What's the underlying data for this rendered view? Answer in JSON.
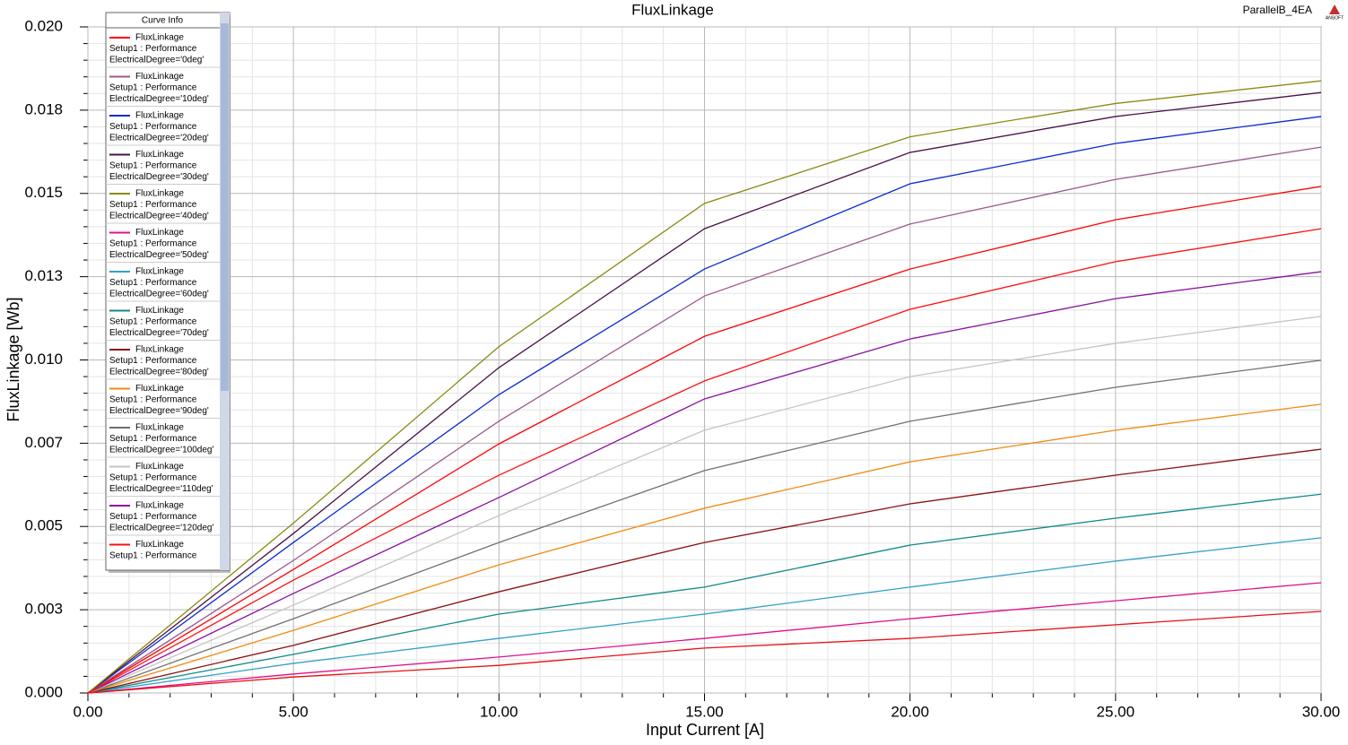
{
  "chart_data": {
    "type": "line",
    "title": "FluxLinkage",
    "brand": "ParallelB_4EA",
    "logo": "ANSOFT",
    "legend_title": "Curve Info",
    "x_label": "Input Current [A]",
    "y_label": "FluxLinkage [Wb]",
    "xlim": [
      0,
      30
    ],
    "ylim": [
      0,
      0.02
    ],
    "xticks": [
      {
        "value": 0,
        "label": "0.00"
      },
      {
        "value": 5,
        "label": "5.00"
      },
      {
        "value": 10,
        "label": "10.00"
      },
      {
        "value": 15,
        "label": "15.00"
      },
      {
        "value": 20,
        "label": "20.00"
      },
      {
        "value": 25,
        "label": "25.00"
      },
      {
        "value": 30,
        "label": "30.00"
      }
    ],
    "yticks": [
      {
        "value": 0,
        "label": "0.000"
      },
      {
        "value": 0.0025,
        "label": "0.003"
      },
      {
        "value": 0.005,
        "label": "0.005"
      },
      {
        "value": 0.0075,
        "label": "0.007"
      },
      {
        "value": 0.01,
        "label": "0.010"
      },
      {
        "value": 0.0125,
        "label": "0.013"
      },
      {
        "value": 0.015,
        "label": "0.015"
      },
      {
        "value": 0.0175,
        "label": "0.018"
      },
      {
        "value": 0.02,
        "label": "0.020"
      }
    ],
    "grid": true,
    "x": [
      0,
      5,
      10,
      15,
      20,
      25,
      30
    ],
    "series": [
      {
        "name": "FluxLinkage",
        "solution": "Setup1 : Performance",
        "variation": "ElectricalDegree='0deg'",
        "color": "#ff0000",
        "values": [
          0,
          0.00371,
          0.00748,
          0.01071,
          0.01273,
          0.01421,
          0.01521
        ]
      },
      {
        "name": "FluxLinkage",
        "solution": "Setup1 : Performance",
        "variation": "ElectricalDegree='10deg'",
        "color": "#9a5a8e",
        "values": [
          0,
          0.00398,
          0.00816,
          0.01192,
          0.01408,
          0.01542,
          0.01639
        ]
      },
      {
        "name": "FluxLinkage",
        "solution": "Setup1 : Performance",
        "variation": "ElectricalDegree='20deg'",
        "color": "#0a2ad0",
        "values": [
          0,
          0.00452,
          0.00896,
          0.01273,
          0.01529,
          0.0165,
          0.01731
        ]
      },
      {
        "name": "FluxLinkage",
        "solution": "Setup1 : Performance",
        "variation": "ElectricalDegree='30deg'",
        "color": "#4a1048",
        "values": [
          0,
          0.00479,
          0.00977,
          0.01394,
          0.01623,
          0.01731,
          0.01803
        ]
      },
      {
        "name": "FluxLinkage",
        "solution": "Setup1 : Performance",
        "variation": "ElectricalDegree='40deg'",
        "color": "#8a8a10",
        "values": [
          0,
          0.0051,
          0.0104,
          0.0147,
          0.0167,
          0.0177,
          0.01838
        ]
      },
      {
        "name": "FluxLinkage",
        "solution": "Setup1 : Performance",
        "variation": "ElectricalDegree='50deg'",
        "color": "#e0108a",
        "values": [
          0,
          0.00057,
          0.00108,
          0.00164,
          0.00223,
          0.00277,
          0.00331
        ]
      },
      {
        "name": "FluxLinkage",
        "solution": "Setup1 : Performance",
        "variation": "ElectricalDegree='60deg'",
        "color": "#30a0c8",
        "values": [
          0,
          0.00089,
          0.00164,
          0.00237,
          0.00318,
          0.00396,
          0.00466
        ]
      },
      {
        "name": "FluxLinkage",
        "solution": "Setup1 : Performance",
        "variation": "ElectricalDegree='70deg'",
        "color": "#108a8a",
        "values": [
          0,
          0.00116,
          0.00237,
          0.00318,
          0.00444,
          0.00525,
          0.00597
        ]
      },
      {
        "name": "FluxLinkage",
        "solution": "Setup1 : Performance",
        "variation": "ElectricalDegree='80deg'",
        "color": "#8a1010",
        "values": [
          0,
          0.00143,
          0.00304,
          0.00452,
          0.00568,
          0.00654,
          0.00732
        ]
      },
      {
        "name": "FluxLinkage",
        "solution": "Setup1 : Performance",
        "variation": "ElectricalDegree='90deg'",
        "color": "#f08a10",
        "values": [
          0,
          0.00188,
          0.00385,
          0.00555,
          0.00694,
          0.00789,
          0.00867
        ]
      },
      {
        "name": "FluxLinkage",
        "solution": "Setup1 : Performance",
        "variation": "ElectricalDegree='100deg'",
        "color": "#707070",
        "values": [
          0,
          0.00223,
          0.00452,
          0.00668,
          0.00816,
          0.00918,
          0.00999
        ]
      },
      {
        "name": "FluxLinkage",
        "solution": "Setup1 : Performance",
        "variation": "ElectricalDegree='110deg'",
        "color": "#c4c4c4",
        "values": [
          0,
          0.00264,
          0.00533,
          0.00789,
          0.0095,
          0.0105,
          0.01131
        ]
      },
      {
        "name": "FluxLinkage",
        "solution": "Setup1 : Performance",
        "variation": "ElectricalDegree='120deg'",
        "color": "#8a10a0",
        "values": [
          0,
          0.00299,
          0.00587,
          0.00883,
          0.01063,
          0.01184,
          0.01265
        ]
      },
      {
        "name": "FluxLinkage",
        "solution": "Setup1 : Performance",
        "color": "#ff1010",
        "values": [
          0,
          0.00339,
          0.00654,
          0.00937,
          0.01152,
          0.01295,
          0.01394
        ]
      },
      {
        "color": "#e81010",
        "values": [
          0,
          0.00048,
          0.00083,
          0.00135,
          0.00164,
          0.00205,
          0.00245
        ]
      }
    ]
  }
}
